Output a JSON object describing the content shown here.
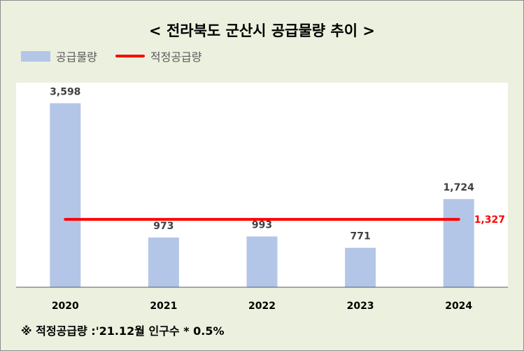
{
  "title": "< 전라북도 군산시 공급물량 추이 >",
  "legend": {
    "bar_label": "공급물량",
    "line_label": "적정공급량"
  },
  "note": "※ 적정공급량 :'21.12월 인구수 * 0.5%",
  "colors": {
    "bar": "#b4c6e7",
    "line": "#ff0000",
    "background": "#ebf1de",
    "plot": "#ffffff"
  },
  "chart_data": {
    "type": "bar",
    "title": "< 전라북도 군산시 공급물량 추이 >",
    "categories": [
      "2020",
      "2021",
      "2022",
      "2023",
      "2024"
    ],
    "series": [
      {
        "name": "공급물량",
        "type": "bar",
        "values": [
          3598,
          973,
          993,
          771,
          1724
        ],
        "labels": [
          "3,598",
          "973",
          "993",
          "771",
          "1,724"
        ]
      },
      {
        "name": "적정공급량",
        "type": "line",
        "value": 1327,
        "label": "1,327"
      }
    ],
    "ylim": [
      0,
      4000
    ],
    "grid": false,
    "legend_position": "top-left"
  }
}
